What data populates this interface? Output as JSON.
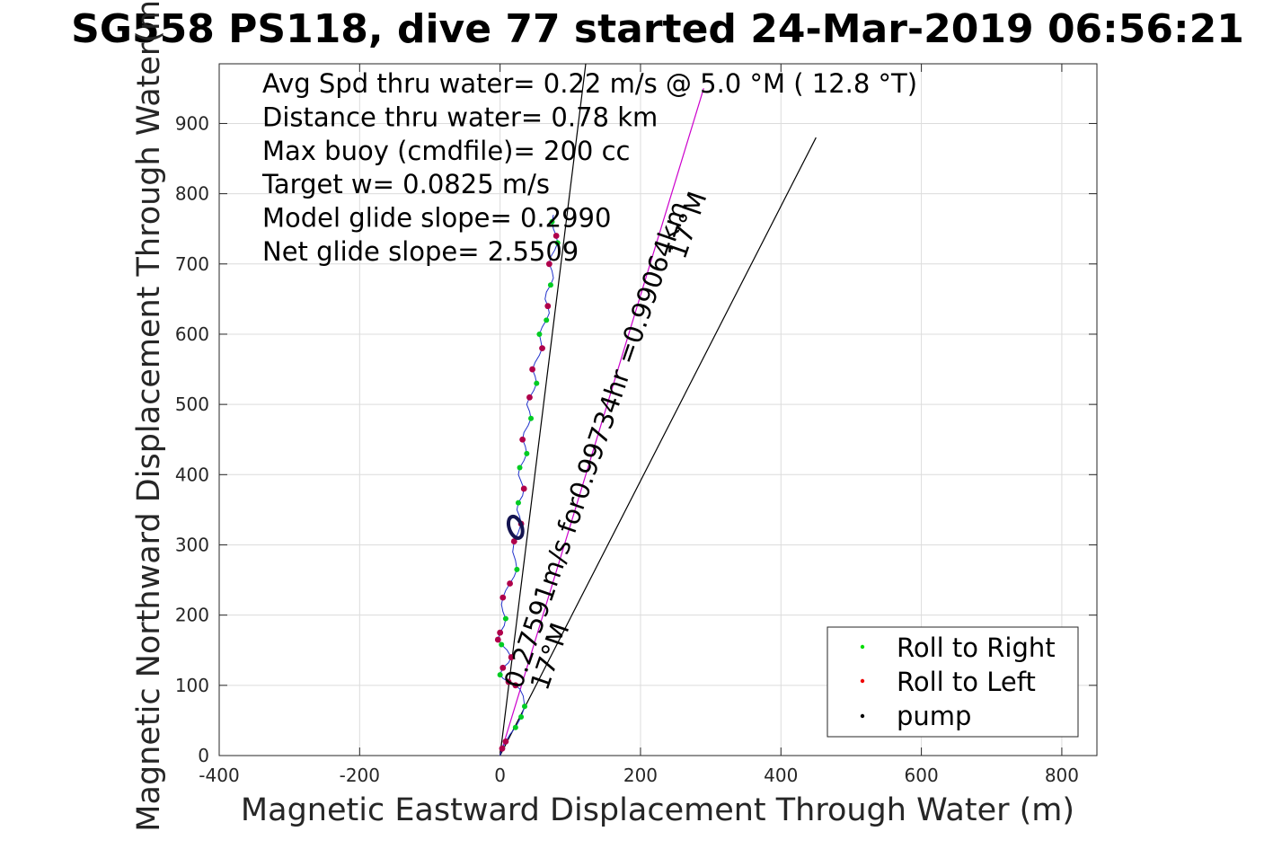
{
  "chart_data": {
    "type": "scatter",
    "title": "SG558 PS118, dive 77 started 24-Mar-2019 06:56:21",
    "xlabel": "Magnetic Eastward Displacement Through Water (m)",
    "ylabel": "Magnetic Northward Displacement Through Water(m)",
    "xlim": [
      -400,
      850
    ],
    "ylim": [
      0,
      985
    ],
    "xticks": [
      "-400",
      "-200",
      "0",
      "200",
      "400",
      "600",
      "800"
    ],
    "yticks": [
      "0",
      "100",
      "200",
      "300",
      "400",
      "500",
      "600",
      "700",
      "800",
      "900"
    ],
    "grid": true,
    "legend_position": "bottom-right",
    "annotations": [
      "Avg Spd thru water=  0.22 m/s @   5.0 °M ( 12.8 °T)",
      "Distance thru water=  0.78 km",
      "Max buoy (cmdfile)= 200 cc",
      "Target w= 0.0825 m/s",
      "Model glide slope= 0.2990",
      "Net glide slope= 2.5509"
    ],
    "line_labels": [
      "0.27591m/s for0.99734hr =0.99064km",
      "17°M",
      "17°M"
    ],
    "reference_lines": [
      {
        "from": [
          0,
          0
        ],
        "to": [
          122,
          985
        ],
        "color": "#000000"
      },
      {
        "from": [
          0,
          0
        ],
        "to": [
          290,
          950
        ],
        "color": "#cc00cc"
      },
      {
        "from": [
          0,
          0
        ],
        "to": [
          450,
          880
        ],
        "color": "#000000"
      }
    ],
    "series": [
      {
        "name": "Roll to Right",
        "color": "#00dd00"
      },
      {
        "name": "Roll to Left",
        "color": "#ee0000"
      },
      {
        "name": "pump",
        "color": "#000000"
      }
    ],
    "track_points": [
      [
        0,
        0
      ],
      [
        3,
        10
      ],
      [
        8,
        20
      ],
      [
        14,
        30
      ],
      [
        22,
        40
      ],
      [
        30,
        55
      ],
      [
        35,
        70
      ],
      [
        33,
        85
      ],
      [
        28,
        95
      ],
      [
        22,
        100
      ],
      [
        12,
        105
      ],
      [
        4,
        110
      ],
      [
        0,
        115
      ],
      [
        4,
        125
      ],
      [
        12,
        132
      ],
      [
        16,
        140
      ],
      [
        10,
        150
      ],
      [
        2,
        158
      ],
      [
        -3,
        165
      ],
      [
        0,
        175
      ],
      [
        6,
        185
      ],
      [
        8,
        195
      ],
      [
        4,
        205
      ],
      [
        2,
        215
      ],
      [
        4,
        225
      ],
      [
        8,
        235
      ],
      [
        14,
        245
      ],
      [
        20,
        255
      ],
      [
        24,
        265
      ],
      [
        22,
        278
      ],
      [
        18,
        290
      ],
      [
        20,
        305
      ],
      [
        26,
        318
      ],
      [
        30,
        330
      ],
      [
        28,
        340
      ],
      [
        24,
        350
      ],
      [
        26,
        360
      ],
      [
        32,
        370
      ],
      [
        34,
        380
      ],
      [
        30,
        390
      ],
      [
        26,
        400
      ],
      [
        28,
        410
      ],
      [
        34,
        420
      ],
      [
        38,
        430
      ],
      [
        36,
        440
      ],
      [
        32,
        450
      ],
      [
        34,
        460
      ],
      [
        40,
        470
      ],
      [
        44,
        480
      ],
      [
        42,
        490
      ],
      [
        38,
        500
      ],
      [
        42,
        510
      ],
      [
        48,
        520
      ],
      [
        52,
        530
      ],
      [
        50,
        540
      ],
      [
        46,
        550
      ],
      [
        50,
        560
      ],
      [
        56,
        570
      ],
      [
        60,
        580
      ],
      [
        58,
        590
      ],
      [
        56,
        600
      ],
      [
        60,
        610
      ],
      [
        66,
        620
      ],
      [
        70,
        630
      ],
      [
        68,
        640
      ],
      [
        64,
        650
      ],
      [
        66,
        660
      ],
      [
        72,
        670
      ],
      [
        76,
        680
      ],
      [
        74,
        690
      ],
      [
        70,
        700
      ],
      [
        72,
        710
      ],
      [
        78,
        720
      ],
      [
        82,
        730
      ],
      [
        80,
        740
      ],
      [
        76,
        750
      ],
      [
        74,
        760
      ],
      [
        76,
        770
      ]
    ],
    "roll_right_points": [
      [
        30,
        55
      ],
      [
        35,
        70
      ],
      [
        22,
        40
      ],
      [
        0,
        115
      ],
      [
        2,
        158
      ],
      [
        8,
        195
      ],
      [
        24,
        265
      ],
      [
        26,
        360
      ],
      [
        28,
        410
      ],
      [
        38,
        430
      ],
      [
        44,
        480
      ],
      [
        52,
        530
      ],
      [
        56,
        600
      ],
      [
        66,
        620
      ],
      [
        72,
        670
      ],
      [
        82,
        730
      ],
      [
        74,
        760
      ]
    ],
    "roll_left_points": [
      [
        3,
        10
      ],
      [
        8,
        20
      ],
      [
        22,
        100
      ],
      [
        12,
        105
      ],
      [
        4,
        125
      ],
      [
        16,
        140
      ],
      [
        -3,
        165
      ],
      [
        0,
        175
      ],
      [
        4,
        225
      ],
      [
        14,
        245
      ],
      [
        20,
        305
      ],
      [
        30,
        330
      ],
      [
        34,
        380
      ],
      [
        32,
        450
      ],
      [
        42,
        510
      ],
      [
        46,
        550
      ],
      [
        60,
        580
      ],
      [
        68,
        640
      ],
      [
        70,
        700
      ],
      [
        80,
        740
      ]
    ],
    "pump_loop": {
      "center": [
        22,
        325
      ],
      "rx": 9,
      "ry": 16
    }
  }
}
